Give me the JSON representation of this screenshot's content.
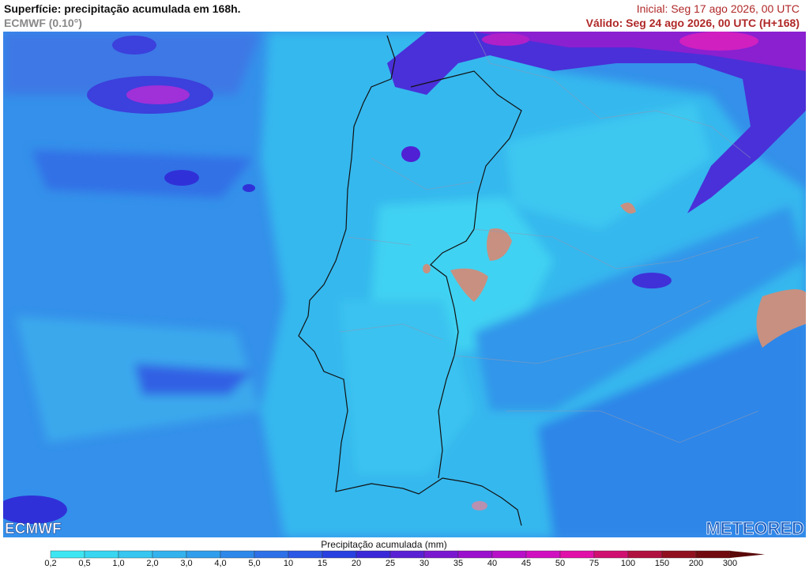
{
  "header": {
    "title": "Superfície: precipitação acumulada em 168h.",
    "subtitle": "ECMWF (0.10°)",
    "initial": "Inicial: Seg 17 ago 2026, 00 UTC",
    "valid": "Válido: Seg 24 ago 2026, 00 UTC (H+168)"
  },
  "logos": {
    "left": "ECMWF",
    "right": "METEORED"
  },
  "legend": {
    "title": "Precipitação acumulada (mm)",
    "labels": [
      "0,2",
      "0,5",
      "1,0",
      "2,0",
      "3,0",
      "4,0",
      "5,0",
      "10",
      "15",
      "20",
      "25",
      "30",
      "35",
      "40",
      "45",
      "50",
      "75",
      "100",
      "150",
      "200",
      "300"
    ],
    "colors": [
      "#3ee6f2",
      "#38d6f0",
      "#36c6f0",
      "#34b2ee",
      "#309eec",
      "#2e88ea",
      "#2e70e8",
      "#2c58e6",
      "#2840e0",
      "#3a28d8",
      "#5a20d4",
      "#7a18d0",
      "#9a10cc",
      "#b810c8",
      "#d010c0",
      "#e010a8",
      "#d01070",
      "#b01040",
      "#901020",
      "#700a10",
      "#5a0808"
    ]
  }
}
